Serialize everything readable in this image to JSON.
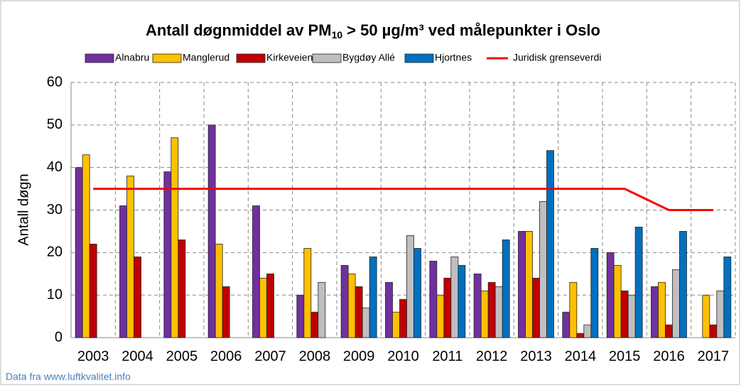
{
  "chart_data": {
    "type": "bar",
    "title": [
      "Antall døgnmiddel av PM",
      "10",
      "> 50 µg/m³ ved målepunkter i Oslo"
    ],
    "ylabel": "Antall døgn",
    "source": "Data fra www.luftkvalitet.info",
    "categories": [
      "2003",
      "2004",
      "2005",
      "2006",
      "2007",
      "2008",
      "2009",
      "2010",
      "2011",
      "2012",
      "2013",
      "2014",
      "2015",
      "2016",
      "2017"
    ],
    "series": [
      {
        "name": "Alnabru",
        "color": "#7030a0",
        "values": [
          40,
          31,
          39,
          50,
          31,
          10,
          17,
          13,
          18,
          15,
          25,
          6,
          20,
          12,
          null
        ]
      },
      {
        "name": "Manglerud",
        "color": "#ffc000",
        "values": [
          43,
          38,
          47,
          22,
          14,
          21,
          15,
          6,
          10,
          11,
          25,
          13,
          17,
          13,
          10
        ]
      },
      {
        "name": "Kirkeveien",
        "color": "#c00000",
        "values": [
          22,
          19,
          23,
          12,
          15,
          6,
          12,
          9,
          14,
          13,
          14,
          1,
          11,
          3,
          3
        ]
      },
      {
        "name": "Bygdøy Allé",
        "color": "#bfbfbf",
        "values": [
          null,
          null,
          null,
          null,
          null,
          13,
          7,
          24,
          19,
          12,
          32,
          3,
          10,
          16,
          11
        ]
      },
      {
        "name": "Hjortnes",
        "color": "#0070c0",
        "values": [
          null,
          null,
          null,
          null,
          null,
          null,
          19,
          21,
          17,
          23,
          44,
          21,
          26,
          25,
          19
        ]
      },
      {
        "name": "Juridisk grenseverdi",
        "color": "#ff0000",
        "type": "line",
        "values": [
          35,
          35,
          35,
          35,
          35,
          35,
          35,
          35,
          35,
          35,
          35,
          35,
          35,
          30,
          30
        ]
      }
    ],
    "ylim": [
      0,
      60
    ],
    "yticks": [
      0,
      10,
      20,
      30,
      40,
      50,
      60
    ],
    "grid": true,
    "legend": "top"
  }
}
